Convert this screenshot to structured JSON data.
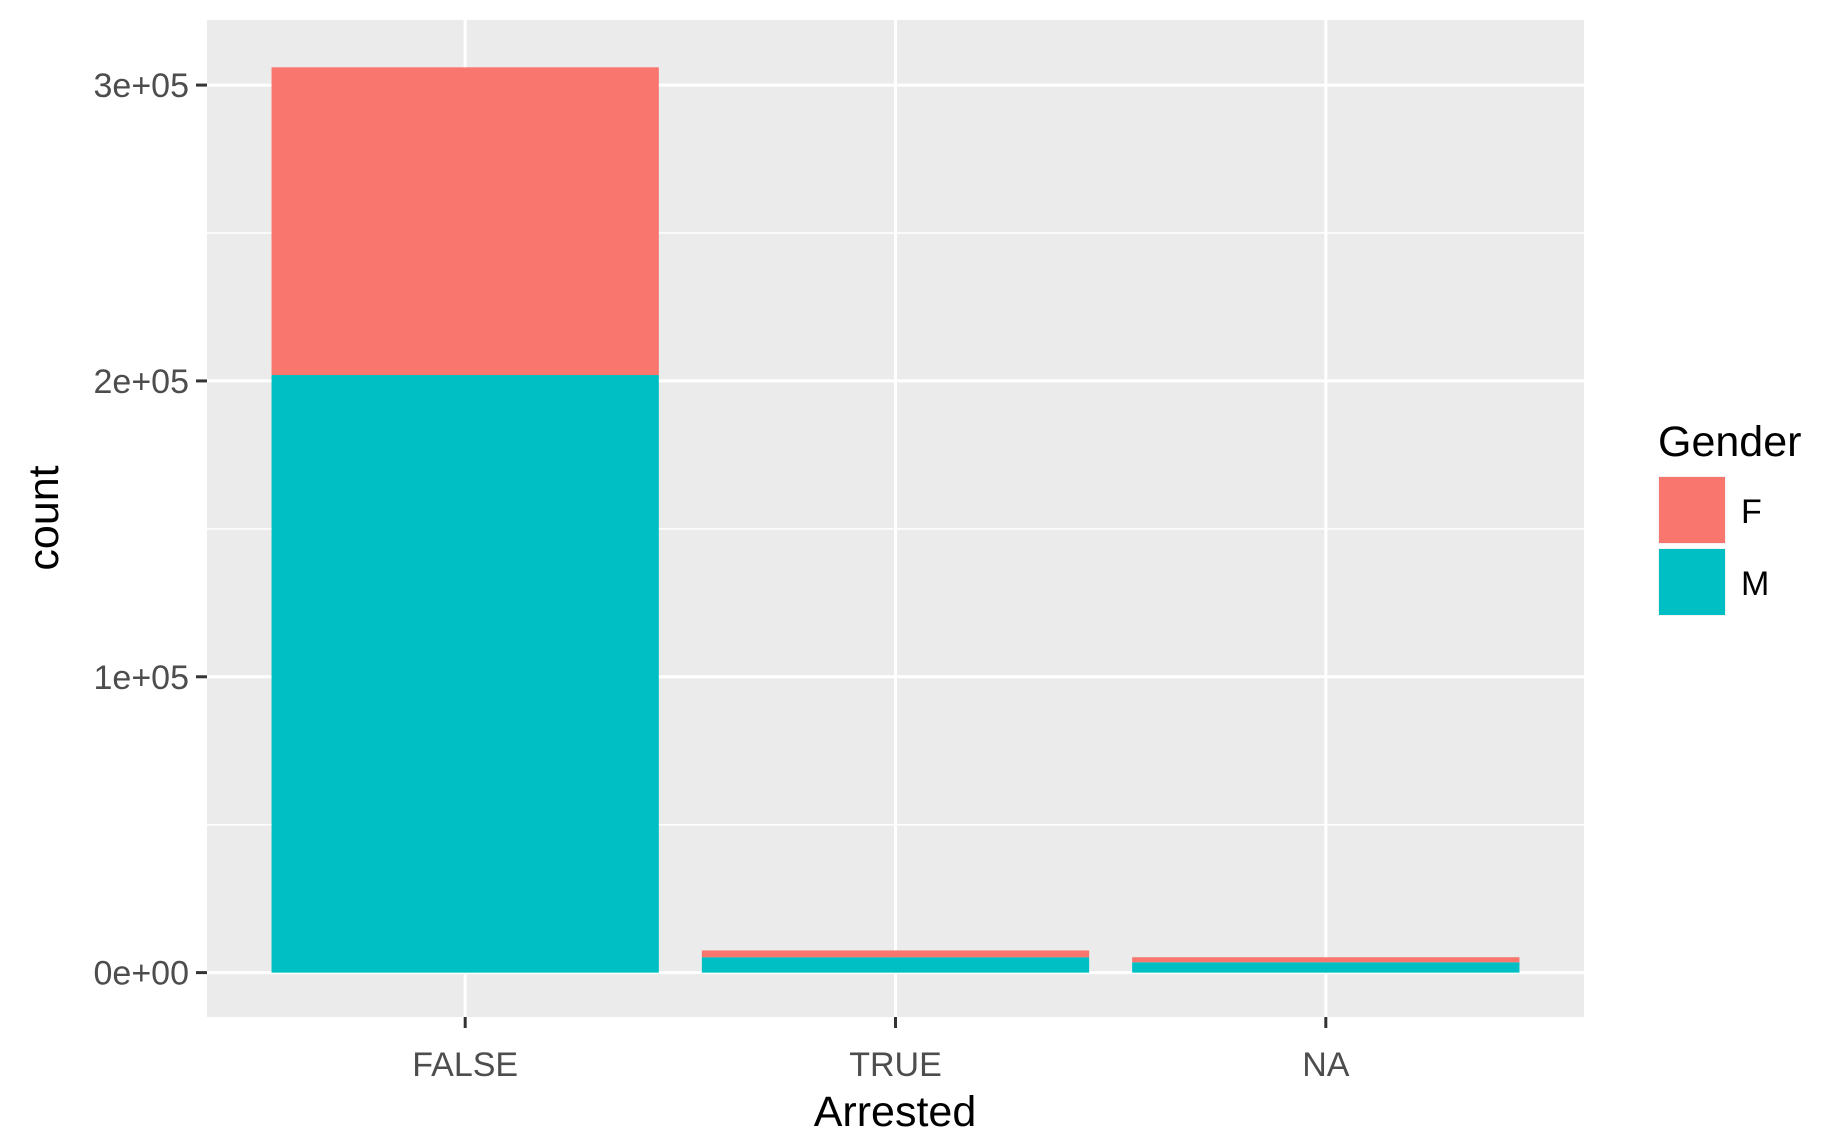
{
  "chart_data": {
    "type": "bar",
    "stacked": true,
    "title": "",
    "xlabel": "Arrested",
    "ylabel": "count",
    "categories": [
      "FALSE",
      "TRUE",
      "NA"
    ],
    "series": [
      {
        "name": "M",
        "color": "#00BFC4",
        "values": [
          202000,
          5200,
          3500
        ]
      },
      {
        "name": "F",
        "color": "#F8766D",
        "values": [
          104000,
          2300,
          1700
        ]
      }
    ],
    "ylim": [
      -15000,
      322000
    ],
    "yticks": [
      0,
      100000,
      200000,
      300000
    ],
    "ytick_labels": [
      "0e+00",
      "1e+05",
      "2e+05",
      "3e+05"
    ],
    "grid": true,
    "panel_color": "#EBEBEB",
    "legend": {
      "title": "Gender",
      "placement": "right",
      "entries": [
        {
          "label": "F",
          "color": "#F8766D"
        },
        {
          "label": "M",
          "color": "#00BFC4"
        }
      ]
    }
  }
}
